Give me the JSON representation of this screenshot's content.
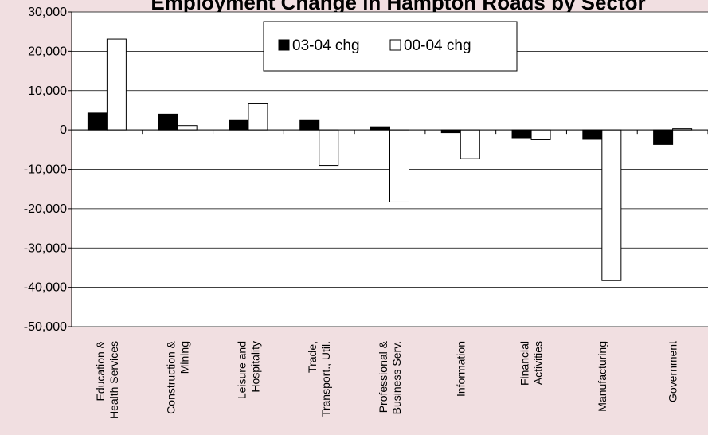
{
  "chart_data": {
    "type": "bar",
    "title": "Employment Change in Hampton Roads by Sector",
    "categories": [
      [
        "Education &",
        "Health Services"
      ],
      [
        "Construction &",
        "Mining"
      ],
      [
        "Leisure and",
        "Hospitality"
      ],
      [
        "Trade,",
        "Transport., Util."
      ],
      [
        "Professional &",
        "Business Serv."
      ],
      [
        "Information"
      ],
      [
        "Financial",
        "Activities"
      ],
      [
        "Manufacturing"
      ],
      [
        "Government"
      ]
    ],
    "series": [
      {
        "name": "03-04 chg",
        "color": "#000000",
        "values": [
          4300,
          4000,
          2600,
          2600,
          800,
          -700,
          -2000,
          -2400,
          -3700
        ]
      },
      {
        "name": "00-04 chg",
        "color": "#ffffff",
        "values": [
          23100,
          1100,
          6800,
          -9000,
          -18300,
          -7300,
          -2500,
          -38300,
          300
        ]
      }
    ],
    "ylim": [
      -50000,
      30000
    ],
    "ytick_step": 10000,
    "ytick_labels": [
      "30,000",
      "20,000",
      "10,000",
      "0",
      "-10,000",
      "-20,000",
      "-30,000",
      "-40,000",
      "-50,000"
    ],
    "grid": true,
    "legend": "top-center",
    "xlabel": "",
    "ylabel": ""
  }
}
